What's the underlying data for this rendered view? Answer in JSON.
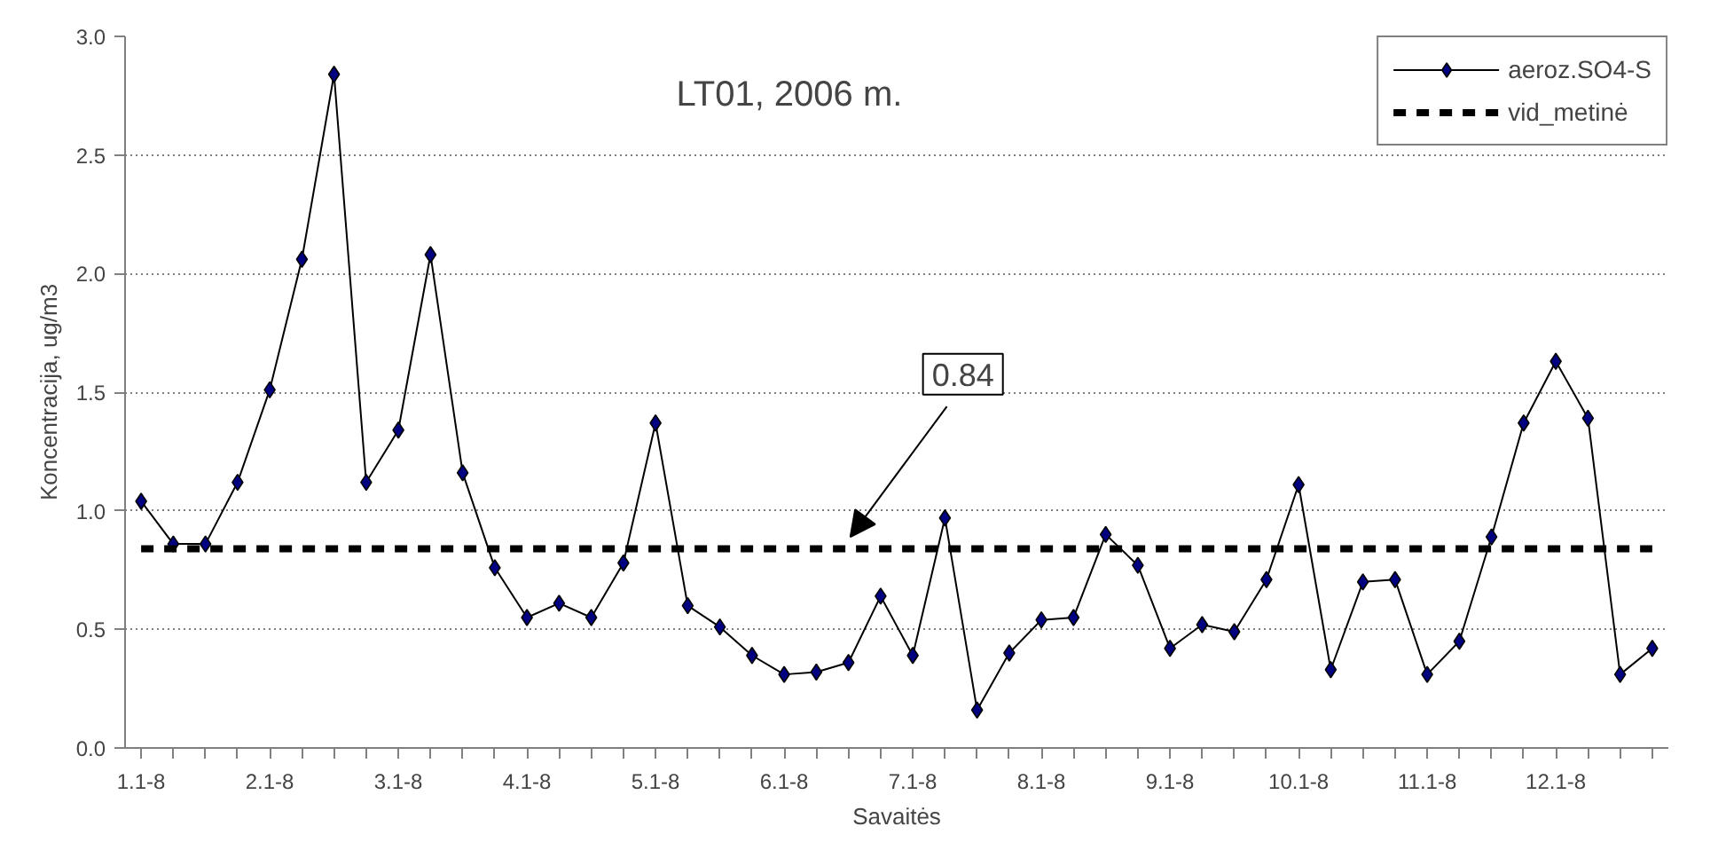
{
  "chart_data": {
    "type": "line",
    "title": "LT01, 2006 m.",
    "xlabel": "Savaitės",
    "ylabel": "Koncentracija, ug/m3",
    "categories": [
      "1.1-8",
      null,
      null,
      null,
      "2.1-8",
      null,
      null,
      null,
      "3.1-8",
      null,
      null,
      null,
      "4.1-8",
      null,
      null,
      null,
      "5.1-8",
      null,
      null,
      null,
      "6.1-8",
      null,
      null,
      null,
      "7.1-8",
      null,
      null,
      null,
      "8.1-8",
      null,
      null,
      null,
      "9.1-8",
      null,
      null,
      null,
      "10.1-8",
      null,
      null,
      null,
      "11.1-8",
      null,
      null,
      null,
      "12.1-8",
      null,
      null,
      null
    ],
    "series": [
      {
        "name": "aeroz.SO4-S",
        "color": "#000080",
        "marker": "diamond",
        "line_style": "solid",
        "values": [
          1.04,
          0.86,
          0.86,
          1.12,
          1.51,
          2.06,
          2.84,
          1.12,
          1.34,
          2.08,
          1.16,
          0.76,
          0.55,
          0.61,
          0.55,
          0.78,
          1.37,
          0.6,
          0.51,
          0.39,
          0.31,
          0.32,
          0.36,
          0.64,
          0.39,
          0.97,
          0.16,
          0.4,
          0.54,
          0.55,
          0.9,
          0.77,
          0.42,
          0.52,
          0.49,
          0.71,
          1.11,
          0.33,
          0.7,
          0.71,
          0.31,
          0.45,
          0.89,
          1.37,
          1.63,
          1.39,
          0.31,
          0.42
        ]
      },
      {
        "name": "vid_metinė",
        "color": "#000000",
        "marker": "none",
        "line_style": "dashed",
        "values": [
          0.84,
          0.84,
          0.84,
          0.84,
          0.84,
          0.84,
          0.84,
          0.84,
          0.84,
          0.84,
          0.84,
          0.84,
          0.84,
          0.84,
          0.84,
          0.84,
          0.84,
          0.84,
          0.84,
          0.84,
          0.84,
          0.84,
          0.84,
          0.84,
          0.84,
          0.84,
          0.84,
          0.84,
          0.84,
          0.84,
          0.84,
          0.84,
          0.84,
          0.84,
          0.84,
          0.84,
          0.84,
          0.84,
          0.84,
          0.84,
          0.84,
          0.84,
          0.84,
          0.84,
          0.84,
          0.84,
          0.84,
          0.84
        ]
      }
    ],
    "annotations": [
      "0.84"
    ],
    "ylim": [
      0,
      3
    ],
    "yticks": [
      {
        "value": 0,
        "label": "0.0"
      },
      {
        "value": 0.5,
        "label": "0.5"
      },
      {
        "value": 1,
        "label": "1.0"
      },
      {
        "value": 1.5,
        "label": "1.5"
      },
      {
        "value": 2,
        "label": "2.0"
      },
      {
        "value": 2.5,
        "label": "2.5"
      },
      {
        "value": 3,
        "label": "3.0"
      }
    ],
    "grid": "y",
    "legend": "top right"
  }
}
